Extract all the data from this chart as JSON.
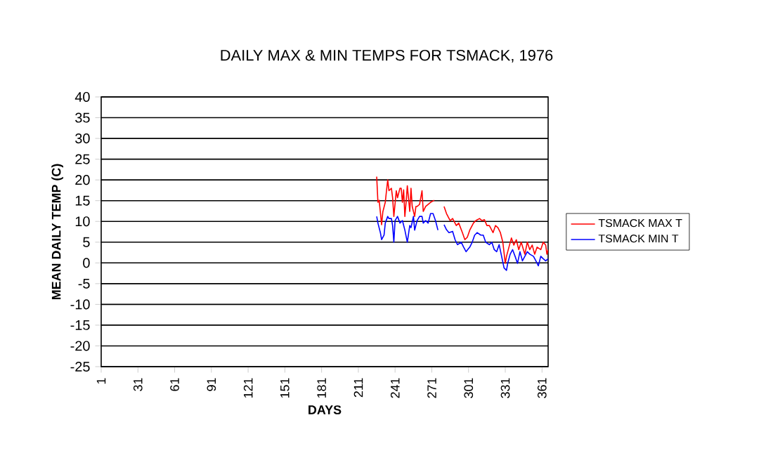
{
  "chart_data": {
    "type": "line",
    "title": "DAILY MAX & MIN TEMPS FOR TSMACK, 1976",
    "xlabel": "DAYS",
    "ylabel": "MEAN DAILY TEMP (C)",
    "xlim": [
      1,
      366
    ],
    "xticks": [
      1,
      31,
      61,
      91,
      121,
      151,
      181,
      211,
      241,
      271,
      301,
      331,
      361
    ],
    "ylim": [
      -25,
      40
    ],
    "yticks": [
      -25,
      -20,
      -15,
      -10,
      -5,
      0,
      5,
      10,
      15,
      20,
      25,
      30,
      35,
      40
    ],
    "grid": "y",
    "legend": "right",
    "marker": "none",
    "line_style": "solid",
    "series": [
      {
        "name": "TSMACK MAX T",
        "color": "#ff0000",
        "x": [
          226,
          227,
          228,
          230,
          231,
          233,
          234,
          235,
          236,
          238,
          239,
          240,
          242,
          243,
          245,
          246,
          247,
          248,
          249,
          250,
          251,
          253,
          254,
          255,
          257,
          258,
          259,
          261,
          263,
          264,
          266,
          268,
          270,
          273,
          277,
          281,
          283,
          286,
          288,
          291,
          293,
          296,
          298,
          300,
          302,
          305,
          307,
          310,
          312,
          314,
          316,
          318,
          321,
          323,
          325,
          327,
          329,
          331,
          332,
          334,
          336,
          338,
          340,
          342,
          344,
          347,
          349,
          351,
          353,
          355,
          357,
          360,
          362,
          364,
          365,
          366
        ],
        "values": [
          20.8,
          14.6,
          15.1,
          9.2,
          12.3,
          14.6,
          17.4,
          20.0,
          17.4,
          18.0,
          15.7,
          11.2,
          17.4,
          15.7,
          18.0,
          18.0,
          14.6,
          17.6,
          11.2,
          14.6,
          18.6,
          12.4,
          18.0,
          13.6,
          11.2,
          13.6,
          13.6,
          14.1,
          17.4,
          12.4,
          13.6,
          14.1,
          14.6,
          15.1,
          null,
          13.6,
          11.9,
          10.2,
          10.7,
          9.0,
          9.6,
          7.3,
          5.6,
          6.2,
          7.9,
          9.6,
          10.2,
          10.7,
          10.2,
          10.4,
          9.0,
          9.0,
          7.3,
          9.0,
          8.5,
          7.3,
          5.0,
          -0.1,
          1.6,
          3.8,
          6.0,
          4.3,
          5.6,
          3.2,
          5.0,
          2.1,
          5.0,
          3.2,
          4.3,
          2.1,
          3.8,
          3.2,
          5.0,
          4.3,
          2.1,
          3.2
        ]
      },
      {
        "name": "TSMACK MIN T",
        "color": "#0000ff",
        "x": [
          226,
          227,
          229,
          230,
          232,
          233,
          235,
          236,
          238,
          239,
          240,
          241,
          243,
          245,
          247,
          249,
          251,
          253,
          254,
          256,
          257,
          259,
          261,
          263,
          264,
          266,
          268,
          270,
          272,
          274,
          276,
          278,
          281,
          283,
          285,
          288,
          290,
          292,
          295,
          297,
          299,
          302,
          304,
          306,
          308,
          311,
          313,
          315,
          318,
          320,
          322,
          324,
          326,
          328,
          330,
          332,
          333,
          335,
          337,
          339,
          341,
          343,
          345,
          347,
          349,
          351,
          354,
          356,
          358,
          360,
          362,
          364,
          366
        ],
        "values": [
          11.2,
          9.6,
          7.3,
          5.6,
          6.7,
          9.6,
          11.2,
          10.7,
          10.7,
          9.0,
          5.0,
          10.2,
          11.2,
          9.6,
          10.2,
          7.9,
          5.0,
          9.0,
          8.5,
          11.2,
          7.9,
          10.2,
          11.2,
          11.2,
          9.6,
          10.2,
          9.6,
          11.9,
          11.9,
          10.2,
          7.9,
          null,
          9.2,
          8.0,
          7.3,
          7.6,
          5.6,
          4.4,
          5.0,
          3.8,
          2.7,
          3.8,
          5.0,
          6.7,
          7.3,
          6.7,
          6.7,
          5.0,
          4.4,
          5.0,
          3.2,
          2.7,
          4.4,
          1.6,
          -1.2,
          -1.8,
          -0.1,
          2.1,
          3.2,
          1.6,
          -0.1,
          2.7,
          0.5,
          1.6,
          2.7,
          2.1,
          1.6,
          0.5,
          -0.7,
          1.6,
          1.0,
          0.5,
          1.0
        ]
      }
    ]
  }
}
